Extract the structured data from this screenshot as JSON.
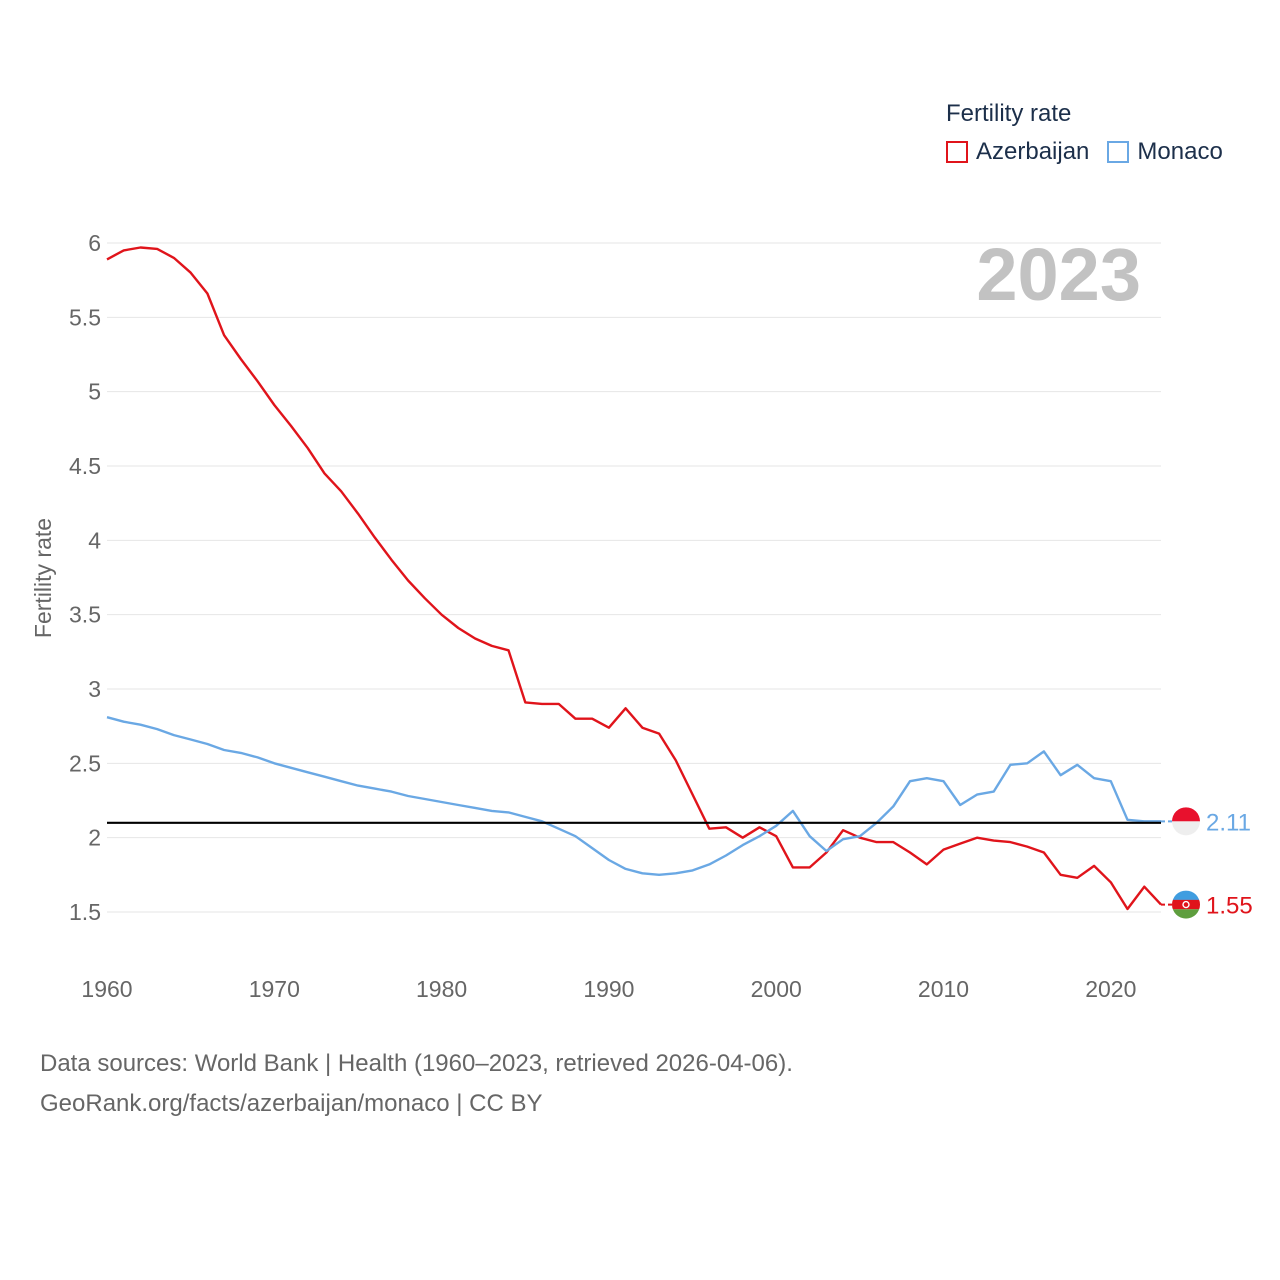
{
  "legend": {
    "title": "Fertility rate",
    "items": [
      {
        "name": "Azerbaijan",
        "color": "#e0141b"
      },
      {
        "name": "Monaco",
        "color": "#6aa8e4"
      }
    ]
  },
  "chart_data": {
    "type": "line",
    "title": "Fertility rate",
    "year_label": "2023",
    "ylabel": "Fertility rate",
    "xlabel": "",
    "xlim": [
      1960,
      2023
    ],
    "ylim": [
      1.3,
      6.1
    ],
    "x_ticks": [
      1960,
      1970,
      1980,
      1990,
      2000,
      2010,
      2020
    ],
    "y_ticks": [
      1.5,
      2,
      2.5,
      3,
      3.5,
      4,
      4.5,
      5,
      5.5,
      6
    ],
    "y_tick_labels": [
      "1.5",
      "2",
      "2.5",
      "3",
      "3.5",
      "4",
      "4.5",
      "5",
      "5.5",
      "6"
    ],
    "reference_line": 2.1,
    "years": [
      1960,
      1961,
      1962,
      1963,
      1964,
      1965,
      1966,
      1967,
      1968,
      1969,
      1970,
      1971,
      1972,
      1973,
      1974,
      1975,
      1976,
      1977,
      1978,
      1979,
      1980,
      1981,
      1982,
      1983,
      1984,
      1985,
      1986,
      1987,
      1988,
      1989,
      1990,
      1991,
      1992,
      1993,
      1994,
      1995,
      1996,
      1997,
      1998,
      1999,
      2000,
      2001,
      2002,
      2003,
      2004,
      2005,
      2006,
      2007,
      2008,
      2009,
      2010,
      2011,
      2012,
      2013,
      2014,
      2015,
      2016,
      2017,
      2018,
      2019,
      2020,
      2021,
      2022,
      2023
    ],
    "series": [
      {
        "name": "Azerbaijan",
        "color": "#e0141b",
        "end_label": "1.55",
        "values": [
          5.89,
          5.95,
          5.97,
          5.96,
          5.9,
          5.8,
          5.66,
          5.38,
          5.22,
          5.07,
          4.91,
          4.77,
          4.62,
          4.45,
          4.33,
          4.18,
          4.02,
          3.87,
          3.73,
          3.61,
          3.5,
          3.41,
          3.34,
          3.29,
          3.26,
          2.91,
          2.9,
          2.9,
          2.8,
          2.8,
          2.74,
          2.87,
          2.74,
          2.7,
          2.52,
          2.29,
          2.06,
          2.07,
          2.0,
          2.07,
          2.01,
          1.8,
          1.8,
          1.9,
          2.05,
          2.0,
          1.97,
          1.97,
          1.9,
          1.82,
          1.92,
          1.96,
          2.0,
          1.98,
          1.97,
          1.94,
          1.9,
          1.75,
          1.73,
          1.81,
          1.7,
          1.52,
          1.67,
          1.55
        ]
      },
      {
        "name": "Monaco",
        "color": "#6aa8e4",
        "end_label": "2.11",
        "values": [
          2.81,
          2.78,
          2.76,
          2.73,
          2.69,
          2.66,
          2.63,
          2.59,
          2.57,
          2.54,
          2.5,
          2.47,
          2.44,
          2.41,
          2.38,
          2.35,
          2.33,
          2.31,
          2.28,
          2.26,
          2.24,
          2.22,
          2.2,
          2.18,
          2.17,
          2.14,
          2.11,
          2.06,
          2.01,
          1.93,
          1.85,
          1.79,
          1.76,
          1.75,
          1.76,
          1.78,
          1.82,
          1.88,
          1.95,
          2.01,
          2.08,
          2.18,
          2.01,
          1.91,
          1.99,
          2.01,
          2.1,
          2.21,
          2.38,
          2.4,
          2.38,
          2.22,
          2.29,
          2.31,
          2.49,
          2.5,
          2.58,
          2.42,
          2.49,
          2.4,
          2.38,
          2.12,
          2.11,
          2.11
        ]
      }
    ]
  },
  "footer": {
    "line1": "Data sources: World Bank | Health (1960–2023, retrieved 2026-04-06).",
    "line2": "GeoRank.org/facts/azerbaijan/monaco | CC BY"
  }
}
